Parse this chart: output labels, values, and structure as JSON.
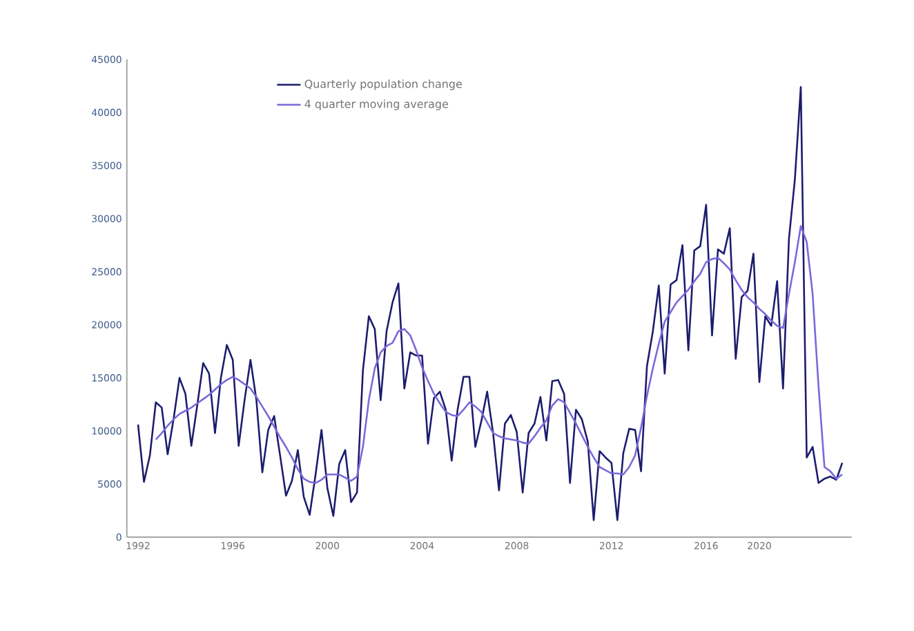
{
  "chart_data": {
    "type": "line",
    "categories": [
      "1992",
      null,
      null,
      null,
      null,
      null,
      null,
      null,
      null,
      null,
      null,
      null,
      null,
      null,
      null,
      null,
      "1996",
      null,
      null,
      null,
      null,
      null,
      null,
      null,
      null,
      null,
      null,
      null,
      null,
      null,
      null,
      null,
      "2000",
      null,
      null,
      null,
      null,
      null,
      null,
      null,
      null,
      null,
      null,
      null,
      null,
      null,
      null,
      null,
      "2004",
      null,
      null,
      null,
      null,
      null,
      null,
      null,
      null,
      null,
      null,
      null,
      null,
      null,
      null,
      null,
      "2008",
      null,
      null,
      null,
      null,
      null,
      null,
      null,
      null,
      null,
      null,
      null,
      null,
      null,
      null,
      null,
      "2012",
      null,
      null,
      null,
      null,
      null,
      null,
      null,
      null,
      null,
      null,
      null,
      null,
      null,
      null,
      null,
      "2016",
      null,
      null,
      null,
      null,
      null,
      null,
      null,
      null,
      "2020",
      null,
      null,
      null,
      null,
      null,
      null,
      null,
      null,
      null,
      null,
      null,
      null,
      null,
      null
    ],
    "series": [
      {
        "name": "Quarterly population change",
        "color": "#1c1c6e",
        "values": [
          10600,
          5200,
          7700,
          12700,
          12200,
          7800,
          11100,
          15000,
          13500,
          8600,
          12400,
          16400,
          15400,
          9800,
          15000,
          18100,
          16700,
          8600,
          12900,
          16700,
          12900,
          6100,
          10100,
          11400,
          7700,
          3900,
          5300,
          8200,
          3800,
          2100,
          5900,
          10100,
          4600,
          2000,
          6900,
          8200,
          3300,
          4200,
          15700,
          20800,
          19600,
          12900,
          19400,
          22100,
          23900,
          14000,
          17400,
          17100,
          17100,
          8800,
          13100,
          13700,
          12000,
          7200,
          12000,
          15100,
          15100,
          8500,
          10900,
          13700,
          9800,
          4400,
          10700,
          11500,
          9900,
          4200,
          9800,
          10700,
          13200,
          9100,
          14700,
          14800,
          13500,
          5100,
          12000,
          11100,
          9000,
          1600,
          8100,
          7500,
          7000,
          1600,
          7900,
          10200,
          10100,
          6200,
          16100,
          19400,
          23700,
          15400,
          23800,
          24200,
          27500,
          17600,
          27000,
          27400,
          31300,
          19000,
          27100,
          26700,
          29100,
          16800,
          22600,
          23200,
          26700,
          14600,
          20800,
          19900,
          24100,
          14000,
          28100,
          33700,
          42400,
          7500,
          8500,
          5100,
          5500,
          5700,
          5400,
          7000
        ]
      },
      {
        "name": "4 quarter moving average",
        "color": "#7b68d9",
        "values": [
          null,
          null,
          null,
          9200,
          9800,
          10500,
          11100,
          11600,
          11900,
          12200,
          12600,
          13000,
          13400,
          13900,
          14400,
          14800,
          15100,
          14800,
          14400,
          14000,
          13200,
          12300,
          11400,
          10400,
          9400,
          8500,
          7500,
          6400,
          5500,
          5200,
          5100,
          5400,
          5900,
          5900,
          5900,
          5600,
          5300,
          5700,
          8500,
          12900,
          15900,
          17400,
          18000,
          18300,
          19400,
          19600,
          19000,
          17600,
          16000,
          14700,
          13500,
          12600,
          11800,
          11500,
          11400,
          12000,
          12700,
          12300,
          11800,
          10800,
          9800,
          9500,
          9300,
          9200,
          9100,
          8900,
          8800,
          9500,
          10300,
          11000,
          12400,
          13000,
          12700,
          11700,
          10700,
          9600,
          8500,
          7500,
          6600,
          6300,
          6000,
          6000,
          5900,
          6600,
          7700,
          10300,
          13300,
          15900,
          18200,
          20300,
          21200,
          22100,
          22700,
          23300,
          24100,
          24800,
          25900,
          26200,
          26300,
          25800,
          25200,
          24200,
          23300,
          22600,
          22100,
          21500,
          21000,
          20400,
          19900,
          19700,
          22900,
          25900,
          29300,
          27800,
          22900,
          14200,
          6600,
          6200,
          5500,
          5900
        ]
      }
    ],
    "ylim": [
      0,
      45000
    ],
    "yticks": [
      0,
      5000,
      10000,
      15000,
      20000,
      25000,
      30000,
      35000,
      40000,
      45000
    ],
    "legend": "top",
    "grid": false
  }
}
